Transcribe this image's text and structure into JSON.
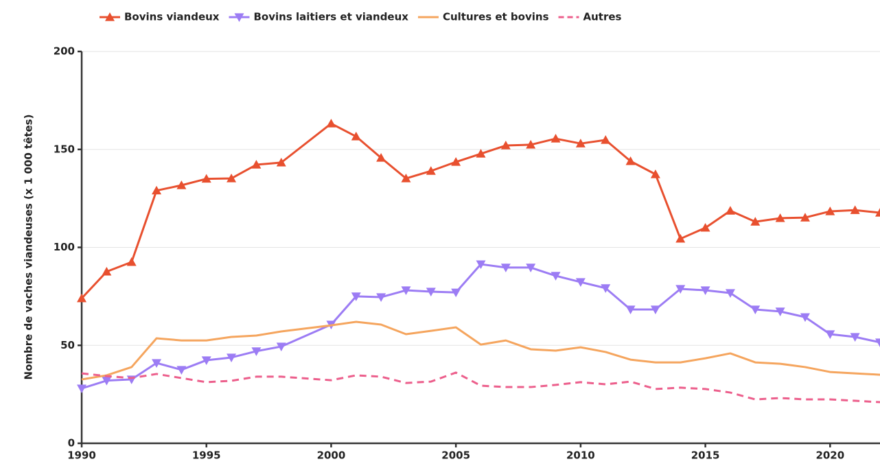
{
  "chart_data": {
    "type": "line",
    "y_label": "Nombre de vaches viandeuses (x 1 000 têtes)",
    "x": [
      1990,
      1991,
      1992,
      1993,
      1994,
      1995,
      1996,
      1997,
      1998,
      2000,
      2001,
      2002,
      2003,
      2004,
      2005,
      2006,
      2007,
      2008,
      2009,
      2010,
      2011,
      2012,
      2013,
      2014,
      2015,
      2016,
      2017,
      2018,
      2019,
      2020,
      2021,
      2022
    ],
    "series": [
      {
        "name": "Bovins viandeux",
        "color": "#e8502f",
        "marker": "triangle-up",
        "dash": false,
        "values": [
          74,
          87.6,
          92.5,
          129,
          131.7,
          135,
          135.2,
          142.2,
          143.3,
          163.2,
          156.6,
          145.7,
          135.2,
          139,
          143.6,
          147.8,
          152,
          152.4,
          155.5,
          153,
          154.8,
          144,
          137.3,
          104.4,
          110,
          118.7,
          113.1,
          114.9,
          115.2,
          118.4,
          119,
          117.7
        ]
      },
      {
        "name": "Bovins laitiers et viandeux",
        "color": "#9c7cf4",
        "marker": "triangle-down",
        "dash": false,
        "values": [
          28,
          32,
          32.6,
          41,
          37.5,
          42.4,
          43.8,
          47,
          49.4,
          60.6,
          75,
          74.6,
          78.1,
          77.4,
          77,
          91.4,
          89.7,
          89.7,
          85.5,
          82.3,
          79.2,
          68.3,
          68.3,
          78.8,
          78.1,
          76.7,
          68.3,
          67.3,
          64.4,
          55.7,
          54.3,
          51.5
        ]
      },
      {
        "name": "Cultures et bovins",
        "color": "#f5a55e",
        "marker": "none",
        "dash": false,
        "values": [
          32.6,
          34.7,
          38.9,
          53.6,
          52.5,
          52.5,
          54.3,
          55,
          57.1,
          60.2,
          62,
          60.6,
          55.7,
          57.4,
          59.2,
          50.4,
          52.5,
          48,
          47.3,
          49,
          46.6,
          42.7,
          41.3,
          41.3,
          43.4,
          45.9,
          41.3,
          40.6,
          38.9,
          36.4,
          35.7,
          35
        ]
      },
      {
        "name": "Autres",
        "color": "#ec5f8c",
        "marker": "none",
        "dash": true,
        "values": [
          35.7,
          34.3,
          33.3,
          35.4,
          33.3,
          31.2,
          31.9,
          34,
          34,
          32.2,
          34.7,
          34,
          30.8,
          31.5,
          36.1,
          29.4,
          28.7,
          28.7,
          29.8,
          31.2,
          30.1,
          31.5,
          27.7,
          28.4,
          27.7,
          25.9,
          22.4,
          23.1,
          22.4,
          22.4,
          21.7,
          21
        ]
      }
    ],
    "xlim": [
      1990,
      2022
    ],
    "xticks": [
      1990,
      1995,
      2000,
      2005,
      2010,
      2015,
      2020
    ],
    "ylim": [
      0,
      200
    ],
    "yticks": [
      0,
      50,
      100,
      150,
      200
    ],
    "grid": true,
    "legend": "top"
  }
}
